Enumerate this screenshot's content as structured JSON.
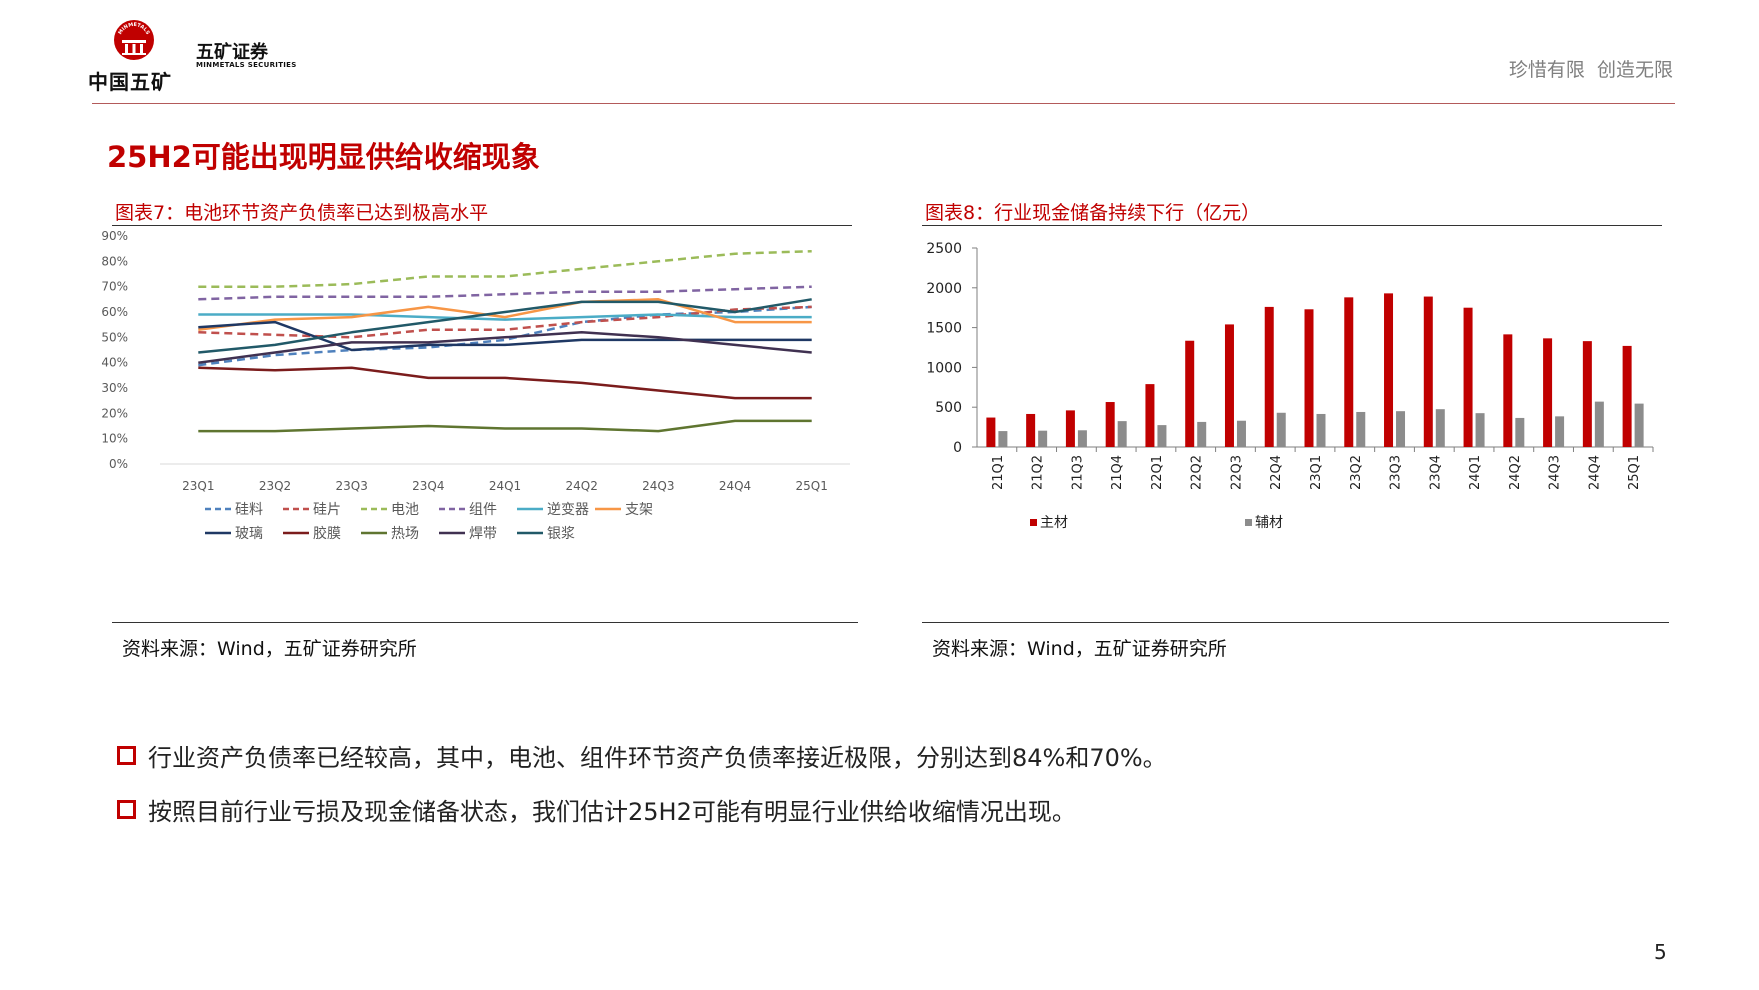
{
  "header": {
    "logo_text": "中国五矿",
    "logo_seal_text": "MINMETALS",
    "brand_cn": "五矿证券",
    "brand_en": "MINMETALS SECURITIES",
    "slogan": "珍惜有限  创造无限"
  },
  "page": {
    "title": "25H2可能出现明显供给收缩现象",
    "number": "5"
  },
  "figures": {
    "fig7": {
      "title": "图表7：电池环节资产负债率已达到极高水平",
      "source": "资料来源：Wind，五矿证券研究所"
    },
    "fig8": {
      "title": "图表8：行业现金储备持续下行（亿元）",
      "source": "资料来源：Wind，五矿证券研究所"
    }
  },
  "bullets": [
    "行业资产负债率已经较高，其中，电池、组件环节资产负债率接近极限，分别达到84%和70%。",
    "按照目前行业亏损及现金储备状态，我们估计25H2可能有明显行业供给收缩情况出现。"
  ],
  "colors": {
    "accent": "#c00000",
    "bar_main": "#c00000",
    "bar_aux": "#8c8c8c"
  },
  "chart_data": [
    {
      "id": "fig7",
      "type": "line",
      "categories": [
        "23Q1",
        "23Q2",
        "23Q3",
        "23Q4",
        "24Q1",
        "24Q2",
        "24Q3",
        "24Q4",
        "25Q1"
      ],
      "yticks": [
        "0%",
        "10%",
        "20%",
        "30%",
        "40%",
        "50%",
        "60%",
        "70%",
        "80%",
        "90%"
      ],
      "ylim": [
        0,
        90
      ],
      "series": [
        {
          "name": "硅料",
          "color": "#4f81bd",
          "dashed": true,
          "values": [
            39,
            43,
            45,
            46,
            49,
            56,
            59,
            60,
            62
          ]
        },
        {
          "name": "硅片",
          "color": "#c0504d",
          "dashed": true,
          "values": [
            52,
            51,
            50,
            53,
            53,
            56,
            58,
            61,
            62
          ]
        },
        {
          "name": "电池",
          "color": "#9bbb59",
          "dashed": true,
          "values": [
            70,
            70,
            71,
            74,
            74,
            77,
            80,
            83,
            84
          ]
        },
        {
          "name": "组件",
          "color": "#8064a2",
          "dashed": true,
          "values": [
            65,
            66,
            66,
            66,
            67,
            68,
            68,
            69,
            70
          ]
        },
        {
          "name": "逆变器",
          "color": "#4bacc6",
          "dashed": false,
          "values": [
            59,
            59,
            59,
            58,
            57,
            58,
            59,
            58,
            58
          ]
        },
        {
          "name": "支架",
          "color": "#f79646",
          "dashed": false,
          "values": [
            53,
            57,
            58,
            62,
            58,
            64,
            65,
            56,
            56
          ]
        },
        {
          "name": "玻璃",
          "color": "#1f3864",
          "dashed": false,
          "values": [
            54,
            56,
            45,
            47,
            47,
            49,
            49,
            49,
            49
          ]
        },
        {
          "name": "胶膜",
          "color": "#7b1c1c",
          "dashed": false,
          "values": [
            38,
            37,
            38,
            34,
            34,
            32,
            29,
            26,
            26
          ]
        },
        {
          "name": "热场",
          "color": "#5f7530",
          "dashed": false,
          "values": [
            13,
            13,
            14,
            15,
            14,
            14,
            13,
            17,
            17
          ]
        },
        {
          "name": "焊带",
          "color": "#403151",
          "dashed": false,
          "values": [
            40,
            44,
            48,
            48,
            50,
            52,
            50,
            47,
            44
          ]
        },
        {
          "name": "银浆",
          "color": "#215968",
          "dashed": false,
          "values": [
            44,
            47,
            52,
            56,
            60,
            64,
            64,
            60,
            65
          ]
        }
      ]
    },
    {
      "id": "fig8",
      "type": "bar",
      "categories": [
        "21Q1",
        "21Q2",
        "21Q3",
        "21Q4",
        "22Q1",
        "22Q2",
        "22Q3",
        "22Q4",
        "23Q1",
        "23Q2",
        "23Q3",
        "23Q4",
        "24Q1",
        "24Q2",
        "24Q3",
        "24Q4",
        "25Q1"
      ],
      "yticks": [
        "0",
        "500",
        "1000",
        "1500",
        "2000",
        "2500"
      ],
      "ylim": [
        0,
        2500
      ],
      "series": [
        {
          "name": "主材",
          "color": "#c00000",
          "values": [
            370,
            415,
            460,
            565,
            790,
            1335,
            1540,
            1760,
            1730,
            1880,
            1930,
            1890,
            1750,
            1415,
            1365,
            1330,
            1270
          ]
        },
        {
          "name": "辅材",
          "color": "#8c8c8c",
          "values": [
            200,
            205,
            210,
            325,
            275,
            315,
            330,
            430,
            415,
            440,
            450,
            475,
            425,
            365,
            385,
            570,
            545
          ]
        }
      ]
    }
  ]
}
